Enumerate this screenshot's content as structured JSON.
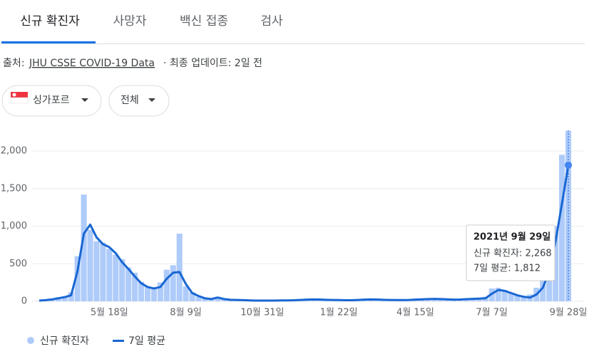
{
  "tabs": [
    "신규 확진자",
    "사망자",
    "백신 접종",
    "검사"
  ],
  "source": {
    "prefix": "출처:",
    "link": "JHU CSSE COVID-19 Data",
    "suffix": "· 최종 업데이트: 2일 전"
  },
  "filters": [
    "싱가포르",
    "전체"
  ],
  "tooltip": {
    "date": "2021년 9월 29일",
    "lines": [
      "신규 확진자: 2,268",
      "7일 평균: 1,812"
    ]
  },
  "chart_data": {
    "type": "bar",
    "categories": [
      null,
      null,
      null,
      null,
      null,
      null,
      null,
      null,
      null,
      null,
      null,
      "5월 18일",
      null,
      null,
      null,
      null,
      null,
      null,
      null,
      null,
      null,
      null,
      null,
      "8월 9일",
      null,
      null,
      null,
      null,
      null,
      null,
      null,
      null,
      null,
      null,
      null,
      "10월 31일",
      null,
      null,
      null,
      null,
      null,
      null,
      null,
      null,
      null,
      null,
      null,
      "1월 22일",
      null,
      null,
      null,
      null,
      null,
      null,
      null,
      null,
      null,
      null,
      null,
      "4월 15일",
      null,
      null,
      null,
      null,
      null,
      null,
      null,
      null,
      null,
      null,
      null,
      "7월 7일",
      null,
      null,
      null,
      null,
      null,
      null,
      null,
      null,
      null,
      null,
      null,
      "9월 28일"
    ],
    "series": [
      {
        "name": "신규 확진자",
        "type": "bar",
        "color": "#aecbfa",
        "values": [
          5,
          20,
          30,
          50,
          70,
          120,
          600,
          1420,
          950,
          800,
          780,
          700,
          620,
          560,
          450,
          380,
          260,
          200,
          190,
          250,
          420,
          480,
          900,
          200,
          120,
          60,
          40,
          30,
          60,
          35,
          20,
          15,
          12,
          10,
          10,
          8,
          8,
          10,
          12,
          10,
          15,
          20,
          25,
          30,
          25,
          20,
          18,
          15,
          12,
          15,
          20,
          25,
          30,
          25,
          20,
          18,
          15,
          15,
          20,
          25,
          30,
          35,
          35,
          30,
          25,
          20,
          25,
          30,
          35,
          40,
          60,
          170,
          180,
          150,
          110,
          80,
          70,
          90,
          180,
          300,
          600,
          1000,
          1950,
          2268
        ]
      },
      {
        "name": "7일 평균",
        "type": "line",
        "color": "#1967d2",
        "values": [
          10,
          15,
          25,
          40,
          55,
          80,
          400,
          900,
          1020,
          850,
          760,
          720,
          640,
          520,
          430,
          330,
          240,
          190,
          170,
          190,
          300,
          380,
          390,
          230,
          110,
          70,
          40,
          30,
          50,
          30,
          20,
          18,
          15,
          12,
          10,
          10,
          10,
          10,
          12,
          12,
          14,
          18,
          22,
          25,
          24,
          20,
          18,
          16,
          14,
          14,
          18,
          22,
          25,
          24,
          20,
          18,
          16,
          16,
          18,
          22,
          26,
          30,
          32,
          30,
          26,
          22,
          24,
          28,
          32,
          36,
          40,
          100,
          150,
          140,
          110,
          80,
          60,
          50,
          90,
          180,
          400,
          800,
          1300,
          1812
        ]
      }
    ],
    "ylim": [
      0,
      2300
    ],
    "yticks": [
      0,
      500,
      {
        "value": 1000,
        "label": "1,000"
      },
      {
        "value": 1500,
        "label": "1,500"
      },
      {
        "value": 2000,
        "label": "2,000"
      }
    ],
    "grid": true
  }
}
